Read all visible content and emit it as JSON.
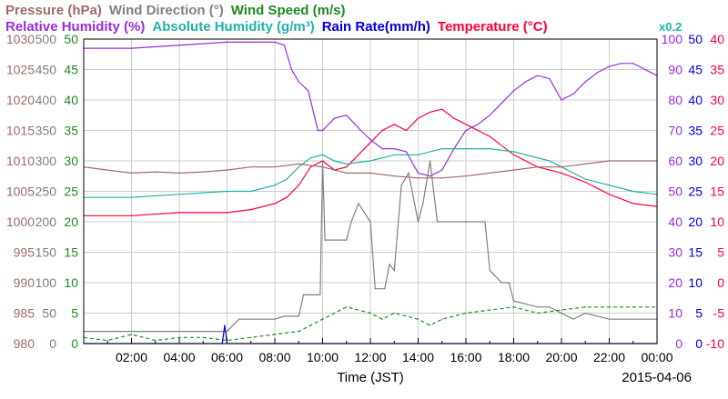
{
  "chart_data": {
    "type": "line",
    "legend": {
      "row1": [
        {
          "name": "Pressure (hPa)",
          "color": "#a06a6a"
        },
        {
          "name": "Wind Direction (°)",
          "color": "#808080"
        },
        {
          "name": "Wind Speed (m/s)",
          "color": "#1c8c1c"
        }
      ],
      "row2": [
        {
          "name": "Relative Humidity (%)",
          "color": "#9a2be2"
        },
        {
          "name": "Absolute Humidity (g/m³)",
          "color": "#20b2aa"
        },
        {
          "name": "Rain Rate(mm/h)",
          "color": "#0000dd"
        },
        {
          "name": "Temperature (°C)",
          "color": "#ff0033"
        }
      ],
      "note": "x0.2"
    },
    "xlabel": "Time (JST)",
    "date": "2015-04-06",
    "x_range": [
      0,
      24
    ],
    "x_ticks": [
      "02:00",
      "04:00",
      "06:00",
      "08:00",
      "10:00",
      "12:00",
      "14:00",
      "16:00",
      "18:00",
      "20:00",
      "22:00",
      "00:00"
    ],
    "axes": {
      "pressure": {
        "color": "#a06a6a",
        "range": [
          980,
          1030
        ],
        "ticks": [
          "1030",
          "1025",
          "1020",
          "1015",
          "1010",
          "1005",
          "1000",
          "995",
          "990",
          "985",
          "980"
        ]
      },
      "wind_direction": {
        "color": "#808080",
        "range": [
          0,
          500
        ],
        "ticks": [
          "500",
          "450",
          "400",
          "350",
          "300",
          "250",
          "200",
          "150",
          "100",
          "50",
          "0"
        ]
      },
      "wind_speed": {
        "color": "#1c8c1c",
        "range": [
          0,
          50
        ],
        "ticks": [
          "50",
          "45",
          "40",
          "35",
          "30",
          "25",
          "20",
          "15",
          "10",
          "5",
          "0"
        ]
      },
      "relative_humidity": {
        "color": "#9a2be2",
        "range": [
          0,
          100
        ],
        "ticks": [
          "100",
          "90",
          "80",
          "70",
          "60",
          "50",
          "40",
          "30",
          "20",
          "10",
          "0"
        ]
      },
      "rain_rate": {
        "color": "#0000dd",
        "range": [
          0,
          50
        ],
        "ticks": [
          "50",
          "45",
          "40",
          "35",
          "30",
          "25",
          "20",
          "15",
          "10",
          "5",
          "0"
        ]
      },
      "temperature": {
        "color": "#ff0033",
        "range": [
          -10,
          40
        ],
        "ticks": [
          "40",
          "35",
          "30",
          "25",
          "20",
          "15",
          "10",
          "5",
          "0",
          "-5",
          "-10"
        ]
      }
    },
    "series": [
      {
        "name": "Temperature (°C)",
        "axis": "temperature",
        "color": "#ff0033",
        "points": [
          [
            0,
            11
          ],
          [
            2,
            11
          ],
          [
            4,
            11.5
          ],
          [
            6,
            11.5
          ],
          [
            7,
            12
          ],
          [
            8,
            13
          ],
          [
            8.5,
            14
          ],
          [
            9,
            16
          ],
          [
            9.5,
            19
          ],
          [
            10,
            20
          ],
          [
            10.5,
            18.5
          ],
          [
            11,
            19
          ],
          [
            12,
            23
          ],
          [
            12.5,
            25
          ],
          [
            13,
            26
          ],
          [
            13.5,
            25
          ],
          [
            14,
            27
          ],
          [
            14.5,
            28
          ],
          [
            15,
            28.5
          ],
          [
            15.5,
            27
          ],
          [
            16,
            26
          ],
          [
            16.5,
            25
          ],
          [
            17,
            24
          ],
          [
            18,
            21
          ],
          [
            19,
            19
          ],
          [
            20,
            18
          ],
          [
            21,
            16.5
          ],
          [
            22,
            14.5
          ],
          [
            23,
            13
          ],
          [
            24,
            12.5
          ]
        ]
      },
      {
        "name": "Relative Humidity (%)",
        "axis": "relative_humidity",
        "color": "#9a2be2",
        "points": [
          [
            0,
            97
          ],
          [
            2,
            97
          ],
          [
            6,
            99
          ],
          [
            8,
            99
          ],
          [
            8.4,
            98
          ],
          [
            8.7,
            90
          ],
          [
            9,
            86
          ],
          [
            9.4,
            83
          ],
          [
            9.8,
            70
          ],
          [
            10,
            70
          ],
          [
            10.5,
            74
          ],
          [
            11,
            75
          ],
          [
            11.6,
            70
          ],
          [
            12,
            67
          ],
          [
            12.5,
            64
          ],
          [
            13,
            64
          ],
          [
            13.5,
            63
          ],
          [
            14,
            56
          ],
          [
            14.5,
            55
          ],
          [
            15,
            57
          ],
          [
            15.5,
            64
          ],
          [
            16,
            70
          ],
          [
            16.5,
            72
          ],
          [
            17,
            75
          ],
          [
            17.5,
            79
          ],
          [
            18,
            83
          ],
          [
            18.5,
            86
          ],
          [
            19,
            88
          ],
          [
            19.5,
            87
          ],
          [
            20,
            80
          ],
          [
            20.5,
            82
          ],
          [
            21,
            86
          ],
          [
            21.5,
            89
          ],
          [
            22,
            91
          ],
          [
            22.5,
            92
          ],
          [
            23,
            92
          ],
          [
            23.5,
            90
          ],
          [
            24,
            88
          ]
        ]
      },
      {
        "name": "Absolute Humidity (g/m³)",
        "axis": "wind_speed",
        "color": "#20b2aa",
        "points": [
          [
            0,
            24
          ],
          [
            2,
            24
          ],
          [
            4,
            24.5
          ],
          [
            6,
            25
          ],
          [
            7,
            25
          ],
          [
            8,
            26
          ],
          [
            8.5,
            27
          ],
          [
            9,
            29
          ],
          [
            9.5,
            30.5
          ],
          [
            10,
            31
          ],
          [
            10.5,
            30
          ],
          [
            11,
            29.5
          ],
          [
            12,
            30
          ],
          [
            13,
            31
          ],
          [
            14,
            31
          ],
          [
            15,
            32
          ],
          [
            16,
            32
          ],
          [
            17,
            32
          ],
          [
            18,
            31.5
          ],
          [
            19,
            30.5
          ],
          [
            19.5,
            30
          ],
          [
            20,
            29
          ],
          [
            21,
            27
          ],
          [
            22,
            26
          ],
          [
            23,
            25
          ],
          [
            24,
            24.5
          ]
        ]
      },
      {
        "name": "Pressure (hPa)",
        "axis": "pressure",
        "color": "#a06a6a",
        "points": [
          [
            0,
            1009
          ],
          [
            1,
            1008.5
          ],
          [
            2,
            1008
          ],
          [
            3,
            1008.2
          ],
          [
            4,
            1008
          ],
          [
            5,
            1008.2
          ],
          [
            6,
            1008.5
          ],
          [
            7,
            1009
          ],
          [
            8,
            1009
          ],
          [
            9,
            1009.5
          ],
          [
            10,
            1009
          ],
          [
            10.5,
            1008.5
          ],
          [
            11,
            1008
          ],
          [
            12,
            1008
          ],
          [
            13,
            1007.5
          ],
          [
            14,
            1007.2
          ],
          [
            15,
            1007.2
          ],
          [
            16,
            1007.5
          ],
          [
            17,
            1008
          ],
          [
            18,
            1008.5
          ],
          [
            19,
            1009
          ],
          [
            20,
            1009
          ],
          [
            21,
            1009.5
          ],
          [
            22,
            1010
          ],
          [
            23,
            1010
          ],
          [
            24,
            1010
          ]
        ]
      },
      {
        "name": "Wind Direction (°)",
        "axis": "wind_direction",
        "color": "#808080",
        "points": [
          [
            0,
            20
          ],
          [
            6,
            20
          ],
          [
            6.5,
            40
          ],
          [
            8,
            40
          ],
          [
            8.4,
            45
          ],
          [
            9,
            45
          ],
          [
            9.2,
            80
          ],
          [
            9.9,
            80
          ],
          [
            10,
            300
          ],
          [
            10.1,
            170
          ],
          [
            11,
            170
          ],
          [
            11.2,
            200
          ],
          [
            11.5,
            230
          ],
          [
            12,
            200
          ],
          [
            12.2,
            90
          ],
          [
            12.6,
            90
          ],
          [
            12.8,
            130
          ],
          [
            13,
            120
          ],
          [
            13.3,
            260
          ],
          [
            13.6,
            280
          ],
          [
            14,
            200
          ],
          [
            14.2,
            230
          ],
          [
            14.5,
            300
          ],
          [
            14.8,
            200
          ],
          [
            15,
            200
          ],
          [
            15.3,
            200
          ],
          [
            15.6,
            200
          ],
          [
            16,
            200
          ],
          [
            16.8,
            200
          ],
          [
            17,
            120
          ],
          [
            17.5,
            100
          ],
          [
            17.8,
            100
          ],
          [
            18,
            70
          ],
          [
            19,
            60
          ],
          [
            19.5,
            60
          ],
          [
            20,
            50
          ],
          [
            20.5,
            40
          ],
          [
            21,
            50
          ],
          [
            22,
            40
          ],
          [
            23,
            40
          ],
          [
            24,
            40
          ]
        ]
      },
      {
        "name": "Wind Speed (m/s)",
        "axis": "wind_speed",
        "color": "#1c8c1c",
        "dash": true,
        "points": [
          [
            0,
            1
          ],
          [
            1,
            0.5
          ],
          [
            2,
            1.5
          ],
          [
            3,
            0.5
          ],
          [
            4,
            1
          ],
          [
            5,
            1
          ],
          [
            6,
            0.5
          ],
          [
            7,
            1
          ],
          [
            8,
            1.5
          ],
          [
            9,
            2
          ],
          [
            10,
            4
          ],
          [
            10.5,
            5
          ],
          [
            11,
            6
          ],
          [
            12,
            5
          ],
          [
            12.5,
            4
          ],
          [
            13,
            5
          ],
          [
            14,
            4
          ],
          [
            14.5,
            3
          ],
          [
            15,
            4
          ],
          [
            16,
            5
          ],
          [
            17,
            5.5
          ],
          [
            18,
            6
          ],
          [
            19,
            5
          ],
          [
            20,
            5.5
          ],
          [
            21,
            6
          ],
          [
            22,
            6
          ],
          [
            23,
            6
          ],
          [
            24,
            6
          ]
        ]
      },
      {
        "name": "Rain Rate(mm/h)",
        "axis": "rain_rate",
        "color": "#0000dd",
        "points": [
          [
            0,
            0
          ],
          [
            5.8,
            0
          ],
          [
            5.9,
            3
          ],
          [
            6.0,
            0
          ],
          [
            24,
            0
          ]
        ]
      }
    ]
  }
}
